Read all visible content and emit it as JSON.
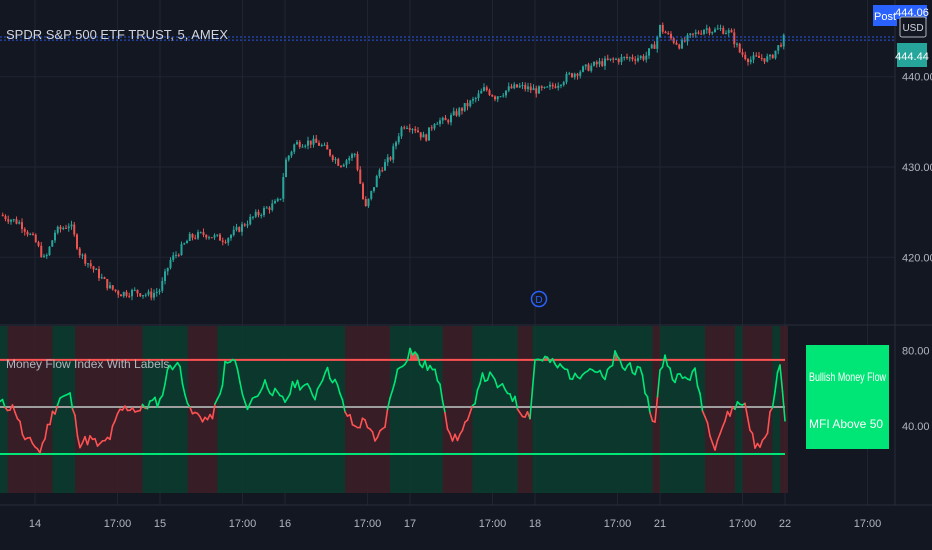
{
  "header": {
    "symbol_title": "SPDR S&P 500 ETF TRUST, 5, AMEX",
    "post_badge": "Post",
    "post_price": "444.06",
    "currency": "USD",
    "last_price": "444.44"
  },
  "colors": {
    "background": "#131722",
    "grid": "#1f2433",
    "up": "#26a69a",
    "down": "#ef5350",
    "bull": "#00e676",
    "bear": "#ff5252",
    "mfi_mid": "#9e9e9e",
    "bull_zone": "#0b3b2e",
    "bear_zone": "#3b1e27",
    "dashed": "#2962ff",
    "post_badge_bg": "#2962ff",
    "info_box_bg": "#00e676"
  },
  "indicator": {
    "title": "Money Flow Index With Labels",
    "label_1": "Bullish Money Flow",
    "label_2": "MFI Above 50",
    "overbought": 75,
    "midline": 50,
    "oversold": 25
  },
  "day_marker": {
    "symbol": "D"
  },
  "chart_data": [
    {
      "type": "line",
      "title": "SPDR S&P 500 ETF TRUST, 5, AMEX",
      "ylabel": "USD",
      "ylim": [
        412.5,
        448.5
      ],
      "yticks": [
        "440.00",
        "430.00",
        "420.00"
      ],
      "ytick_values": [
        440,
        430,
        420
      ],
      "xticks": [
        "14",
        "17:00",
        "15",
        "17:00",
        "16",
        "17:00",
        "17",
        "17:00",
        "18",
        "17:00",
        "21",
        "17:00",
        "22",
        "17:00"
      ],
      "xtick_values": [
        0,
        16.5,
        25,
        41.5,
        50,
        66.5,
        75,
        91.5,
        100,
        116.5,
        125,
        141.5,
        150,
        166.5
      ],
      "x_range": [
        -7,
        172
      ],
      "series": [
        {
          "x": [
            -7,
            -3,
            0,
            2,
            4,
            7,
            9,
            12,
            15,
            17,
            20,
            23,
            25,
            27,
            29,
            31,
            34,
            36,
            38,
            40,
            43,
            46,
            48,
            49,
            50,
            52,
            55,
            57,
            59,
            61,
            64,
            66,
            69,
            71,
            72,
            73,
            74,
            76,
            78,
            80,
            82,
            85,
            88,
            90,
            92,
            95,
            97,
            100,
            102,
            104,
            107,
            110,
            113,
            116,
            119,
            122,
            124,
            125,
            127,
            129,
            131,
            133,
            134,
            136,
            137,
            139,
            141,
            143,
            145,
            147,
            150
          ],
          "values": [
            424.7,
            423.8,
            421.8,
            419.6,
            422.8,
            423.7,
            420.4,
            418.5,
            416.6,
            416.0,
            416.2,
            415.8,
            416.4,
            419.6,
            420.8,
            422.2,
            422.6,
            422.2,
            422.0,
            422.8,
            424.2,
            425.3,
            425.9,
            426.3,
            430.5,
            432.6,
            432.8,
            432.5,
            431.5,
            430.3,
            431.5,
            425.2,
            429.8,
            430.9,
            432.5,
            434.1,
            434.8,
            434.3,
            433.1,
            435.2,
            435.0,
            436.3,
            437.5,
            438.7,
            437.8,
            438.7,
            438.9,
            438.5,
            438.5,
            439.1,
            440.2,
            440.9,
            441.5,
            441.9,
            442.1,
            442.2,
            443.6,
            445.5,
            444.3,
            443.5,
            444.4,
            445.0,
            445.4,
            445.1,
            445.3,
            444.9,
            442.7,
            441.9,
            442.1,
            442.0,
            444.4
          ]
        }
      ]
    },
    {
      "type": "line",
      "title": "Money Flow Index With Labels",
      "ylim": [
        4.3,
        93.0
      ],
      "yticks": [
        "80.00",
        "40.00"
      ],
      "ytick_values": [
        80,
        40
      ],
      "x_range": [
        -7,
        172
      ],
      "series": [
        {
          "name": "MFI",
          "x": [
            -7,
            -4,
            -2,
            0,
            1,
            3,
            5,
            7,
            9,
            11,
            13,
            15,
            17,
            19,
            21,
            23,
            25,
            27,
            29,
            31,
            33,
            35,
            37,
            38,
            40,
            42,
            44,
            46,
            48,
            49,
            50,
            52,
            54,
            56,
            58,
            60,
            62,
            64,
            66,
            67,
            68,
            70,
            72,
            73,
            74,
            75,
            76,
            77,
            79,
            81,
            83,
            85,
            87,
            89,
            91,
            93,
            95,
            97,
            99,
            100,
            102,
            104,
            106,
            108,
            110,
            112,
            114,
            116,
            118,
            119,
            120,
            121,
            122,
            123,
            124,
            125,
            126,
            127,
            128,
            130,
            132,
            134,
            136,
            138,
            140,
            142,
            144,
            146,
            148,
            149,
            150
          ],
          "values": [
            52,
            49,
            32,
            30,
            26,
            43,
            55,
            56,
            31,
            33,
            29,
            34,
            48,
            50,
            48,
            52,
            53,
            73,
            71,
            47,
            45,
            43,
            56,
            72,
            75,
            50,
            55,
            63,
            57,
            54,
            53,
            63,
            61,
            56,
            70,
            64,
            48,
            39,
            43,
            39,
            30,
            41,
            66,
            71,
            75,
            80,
            79,
            73,
            71,
            64,
            33,
            35,
            44,
            65,
            66,
            60,
            58,
            48,
            46,
            75,
            76,
            72,
            70,
            65,
            71,
            70,
            64,
            77,
            70,
            73,
            69,
            68,
            60,
            48,
            41,
            68,
            78,
            69,
            66,
            65,
            68,
            45,
            30,
            43,
            51,
            52,
            28,
            33,
            57,
            75,
            40
          ]
        }
      ]
    }
  ]
}
